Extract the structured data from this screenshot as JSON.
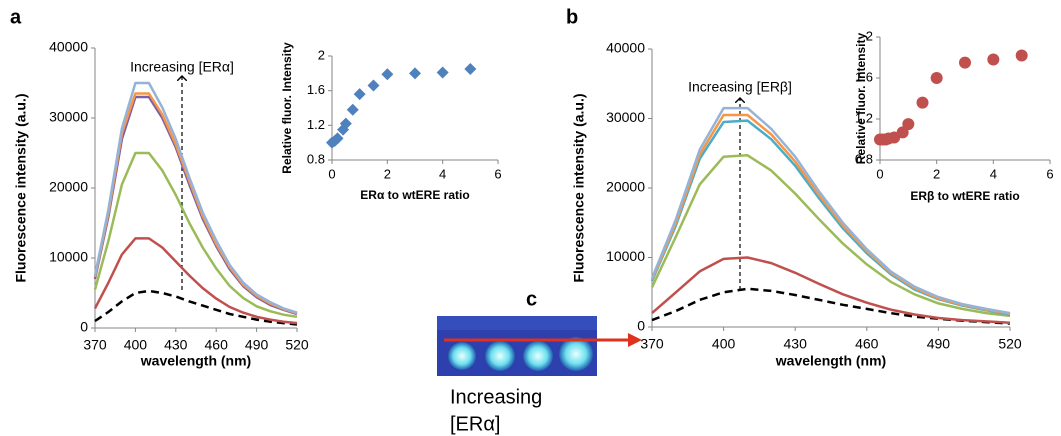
{
  "panels": [
    {
      "label": "a"
    },
    {
      "label": "b"
    },
    {
      "label": "c",
      "caption": [
        "Increasing",
        "[ERα]"
      ]
    }
  ],
  "chart_data": [
    {
      "type": "line",
      "annotation": "Increasing [ERα]",
      "x_label": "wavelength (nm)",
      "y_label": "Fluorescence intensity (a.u.)",
      "x": [
        370,
        380,
        390,
        400,
        410,
        420,
        430,
        440,
        450,
        460,
        470,
        480,
        490,
        500,
        510,
        520
      ],
      "xlim": [
        370,
        520
      ],
      "xticks": [
        370,
        400,
        430,
        460,
        490,
        520
      ],
      "ylim": [
        0,
        40000
      ],
      "yticks": [
        0,
        10000,
        20000,
        30000,
        40000
      ],
      "series": [
        {
          "color": "#000000",
          "dash": true,
          "values": [
            1000,
            2300,
            3800,
            5000,
            5300,
            5000,
            4500,
            3800,
            3200,
            2600,
            2000,
            1600,
            1200,
            900,
            700,
            500
          ]
        },
        {
          "color": "#c0504d",
          "values": [
            2800,
            6500,
            10500,
            12800,
            12800,
            11500,
            9500,
            7500,
            5700,
            4200,
            3000,
            2200,
            1600,
            1200,
            900,
            700
          ]
        },
        {
          "color": "#9bbb59",
          "values": [
            5500,
            12500,
            20500,
            25000,
            25000,
            22500,
            19000,
            15000,
            11500,
            8500,
            6000,
            4300,
            3100,
            2400,
            1900,
            1600
          ]
        },
        {
          "color": "#7b5fa8",
          "values": [
            7000,
            16000,
            27000,
            33000,
            33000,
            30000,
            25800,
            20500,
            15600,
            11700,
            8400,
            6000,
            4400,
            3300,
            2600,
            2000
          ]
        },
        {
          "color": "#f79646",
          "values": [
            7300,
            16500,
            27800,
            33500,
            33500,
            30500,
            26200,
            21000,
            16000,
            12000,
            8700,
            6200,
            4600,
            3500,
            2700,
            2100
          ]
        },
        {
          "color": "#95b3d7",
          "values": [
            7500,
            17000,
            28500,
            35000,
            35000,
            31500,
            27000,
            21500,
            16500,
            12500,
            9000,
            6500,
            4800,
            3700,
            2800,
            2200
          ]
        }
      ]
    },
    {
      "type": "scatter",
      "marker": "diamond",
      "color": "#4f81bd",
      "x_label": "ERα to wtERE ratio",
      "y_label": "Relative fluor. Intensity",
      "x": [
        0,
        0.1,
        0.2,
        0.4,
        0.5,
        0.75,
        1,
        1.5,
        2,
        3,
        4,
        5
      ],
      "values": [
        1.0,
        1.02,
        1.05,
        1.15,
        1.22,
        1.38,
        1.56,
        1.66,
        1.79,
        1.8,
        1.81,
        1.85
      ],
      "xlim": [
        0,
        6
      ],
      "xticks": [
        0,
        2,
        4,
        6
      ],
      "ylim": [
        0.8,
        2
      ],
      "yticks": [
        0.8,
        1.2,
        1.6,
        2
      ]
    },
    {
      "type": "line",
      "annotation": "Increasing [ERβ]",
      "x_label": "wavelength (nm)",
      "y_label": "Fluorescence intensity (a.u.)",
      "x": [
        370,
        380,
        390,
        400,
        410,
        420,
        430,
        440,
        450,
        460,
        470,
        480,
        490,
        500,
        510,
        520
      ],
      "xlim": [
        370,
        520
      ],
      "xticks": [
        370,
        400,
        430,
        460,
        490,
        520
      ],
      "ylim": [
        0,
        40000
      ],
      "yticks": [
        0,
        10000,
        20000,
        30000,
        40000
      ],
      "series": [
        {
          "color": "#000000",
          "dash": true,
          "values": [
            1000,
            2300,
            3900,
            5000,
            5500,
            5200,
            4600,
            3900,
            3200,
            2600,
            2000,
            1500,
            1200,
            900,
            700,
            500
          ]
        },
        {
          "color": "#c0504d",
          "values": [
            2000,
            5000,
            8000,
            9800,
            10000,
            9200,
            7800,
            6200,
            4700,
            3500,
            2500,
            1800,
            1300,
            1000,
            800,
            600
          ]
        },
        {
          "color": "#9bbb59",
          "values": [
            5700,
            13000,
            20500,
            24500,
            24700,
            22500,
            19200,
            15500,
            12000,
            9000,
            6500,
            4700,
            3400,
            2600,
            2000,
            1600
          ]
        },
        {
          "color": "#4bacc6",
          "values": [
            6600,
            14600,
            24200,
            29500,
            29700,
            27000,
            23200,
            18500,
            14200,
            10600,
            7600,
            5400,
            4000,
            3100,
            2400,
            1800
          ]
        },
        {
          "color": "#f79646",
          "values": [
            6800,
            15000,
            24800,
            30500,
            30500,
            27700,
            23800,
            19000,
            14600,
            10900,
            7800,
            5600,
            4100,
            3200,
            2500,
            1900
          ]
        },
        {
          "color": "#95b3d7",
          "values": [
            7000,
            15500,
            25500,
            31500,
            31500,
            28500,
            24500,
            19500,
            15000,
            11200,
            8000,
            5800,
            4300,
            3300,
            2600,
            2000
          ]
        }
      ]
    },
    {
      "type": "scatter",
      "marker": "circle",
      "color": "#c0504d",
      "x_label": "ERβ to wtERE ratio",
      "y_label": "Relative fluor. Intensity",
      "x": [
        0,
        0.1,
        0.2,
        0.3,
        0.5,
        0.8,
        1,
        1.5,
        2,
        3,
        4,
        5
      ],
      "values": [
        1.0,
        1.0,
        1.0,
        1.01,
        1.02,
        1.07,
        1.15,
        1.36,
        1.6,
        1.75,
        1.78,
        1.82
      ],
      "xlim": [
        0,
        6
      ],
      "xticks": [
        0,
        2,
        4,
        6
      ],
      "ylim": [
        0.8,
        2
      ],
      "yticks": [
        0.8,
        1.2,
        1.6,
        2
      ]
    }
  ]
}
